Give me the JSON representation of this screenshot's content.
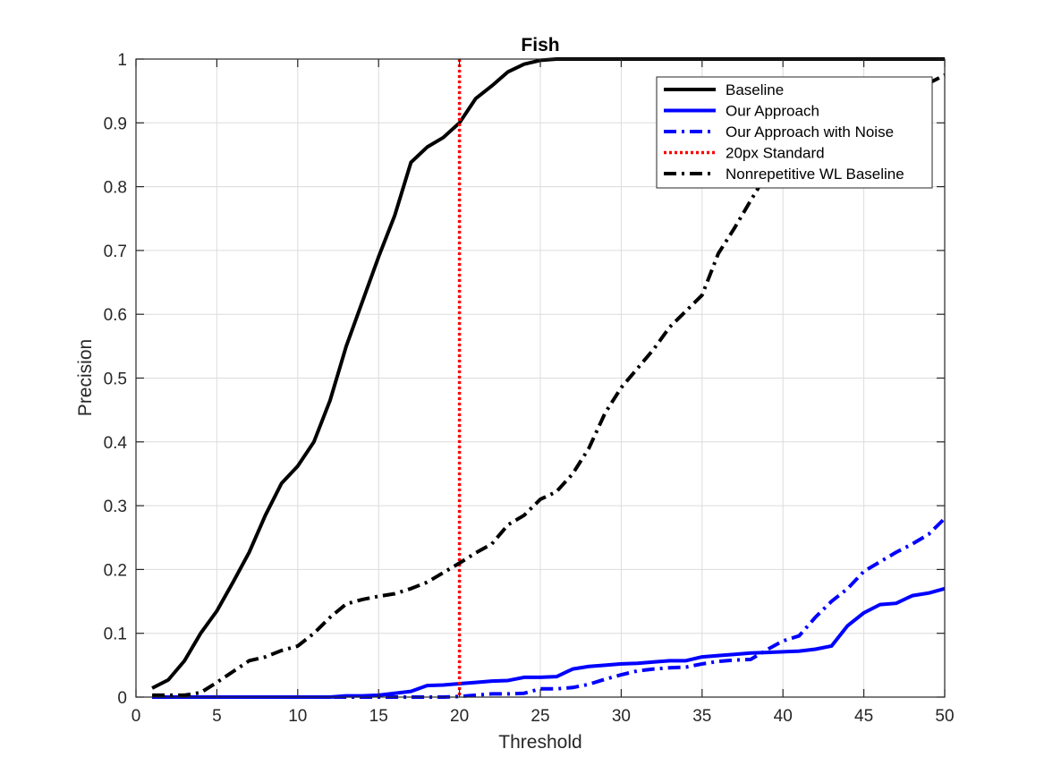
{
  "chart_data": {
    "type": "line",
    "title": "Fish",
    "xlabel": "Threshold",
    "ylabel": "Precision",
    "xlim": [
      0,
      50
    ],
    "ylim": [
      0,
      1
    ],
    "xticks": [
      0,
      5,
      10,
      15,
      20,
      25,
      30,
      35,
      40,
      45,
      50
    ],
    "yticks": [
      0,
      0.1,
      0.2,
      0.3,
      0.4,
      0.5,
      0.6,
      0.7,
      0.8,
      0.9,
      1
    ],
    "grid": true,
    "legend_position": "top-right",
    "x": [
      1,
      2,
      3,
      4,
      5,
      6,
      7,
      8,
      9,
      10,
      11,
      12,
      13,
      14,
      15,
      16,
      17,
      18,
      19,
      20,
      21,
      22,
      23,
      24,
      25,
      26,
      27,
      28,
      29,
      30,
      31,
      32,
      33,
      34,
      35,
      36,
      37,
      38,
      39,
      40,
      41,
      42,
      43,
      44,
      45,
      46,
      47,
      48,
      49,
      50
    ],
    "series": [
      {
        "name": "Baseline",
        "color": "#000000",
        "style": "solid",
        "values": [
          0.014,
          0.027,
          0.057,
          0.1,
          0.135,
          0.18,
          0.227,
          0.285,
          0.335,
          0.362,
          0.4,
          0.465,
          0.55,
          0.62,
          0.69,
          0.755,
          0.838,
          0.862,
          0.877,
          0.9,
          0.938,
          0.958,
          0.98,
          0.992,
          0.998,
          1.0,
          1.0,
          1.0,
          1.0,
          1.0,
          1.0,
          1.0,
          1.0,
          1.0,
          1.0,
          1.0,
          1.0,
          1.0,
          1.0,
          1.0,
          1.0,
          1.0,
          1.0,
          1.0,
          1.0,
          1.0,
          1.0,
          1.0,
          1.0,
          1.0
        ]
      },
      {
        "name": "Our Approach",
        "color": "#0000ff",
        "style": "solid",
        "values": [
          0,
          0,
          0,
          0,
          0,
          0,
          0,
          0,
          0,
          0,
          0,
          0,
          0.002,
          0.002,
          0.003,
          0.006,
          0.009,
          0.018,
          0.019,
          0.021,
          0.023,
          0.025,
          0.026,
          0.031,
          0.031,
          0.032,
          0.044,
          0.048,
          0.05,
          0.052,
          0.053,
          0.055,
          0.057,
          0.057,
          0.063,
          0.065,
          0.067,
          0.069,
          0.07,
          0.071,
          0.072,
          0.075,
          0.08,
          0.112,
          0.132,
          0.145,
          0.147,
          0.159,
          0.163,
          0.17
        ]
      },
      {
        "name": "Our Approach with Noise",
        "color": "#0000ff",
        "style": "dashdot",
        "values": [
          0,
          0,
          0,
          0,
          0,
          0,
          0,
          0,
          0,
          0,
          0,
          0,
          0,
          0,
          0,
          0,
          0,
          0,
          0,
          0.001,
          0.003,
          0.005,
          0.005,
          0.006,
          0.013,
          0.013,
          0.015,
          0.02,
          0.028,
          0.035,
          0.041,
          0.044,
          0.046,
          0.047,
          0.052,
          0.056,
          0.058,
          0.059,
          0.074,
          0.088,
          0.096,
          0.125,
          0.15,
          0.17,
          0.197,
          0.212,
          0.227,
          0.24,
          0.255,
          0.28
        ]
      },
      {
        "name": "20px Standard",
        "color": "#ff0000",
        "style": "dotted",
        "vertical_x": 20
      },
      {
        "name": "Nonrepetitive WL Baseline",
        "color": "#000000",
        "style": "dashdot",
        "values": [
          0.003,
          0.003,
          0.003,
          0.007,
          0.023,
          0.04,
          0.057,
          0.063,
          0.073,
          0.08,
          0.1,
          0.125,
          0.146,
          0.153,
          0.158,
          0.162,
          0.17,
          0.18,
          0.195,
          0.21,
          0.226,
          0.24,
          0.27,
          0.285,
          0.31,
          0.322,
          0.35,
          0.39,
          0.445,
          0.485,
          0.515,
          0.545,
          0.58,
          0.605,
          0.63,
          0.695,
          0.735,
          0.778,
          0.82,
          0.855,
          0.865,
          0.88,
          0.895,
          0.905,
          0.915,
          0.928,
          0.94,
          0.95,
          0.962,
          0.975
        ]
      }
    ]
  }
}
